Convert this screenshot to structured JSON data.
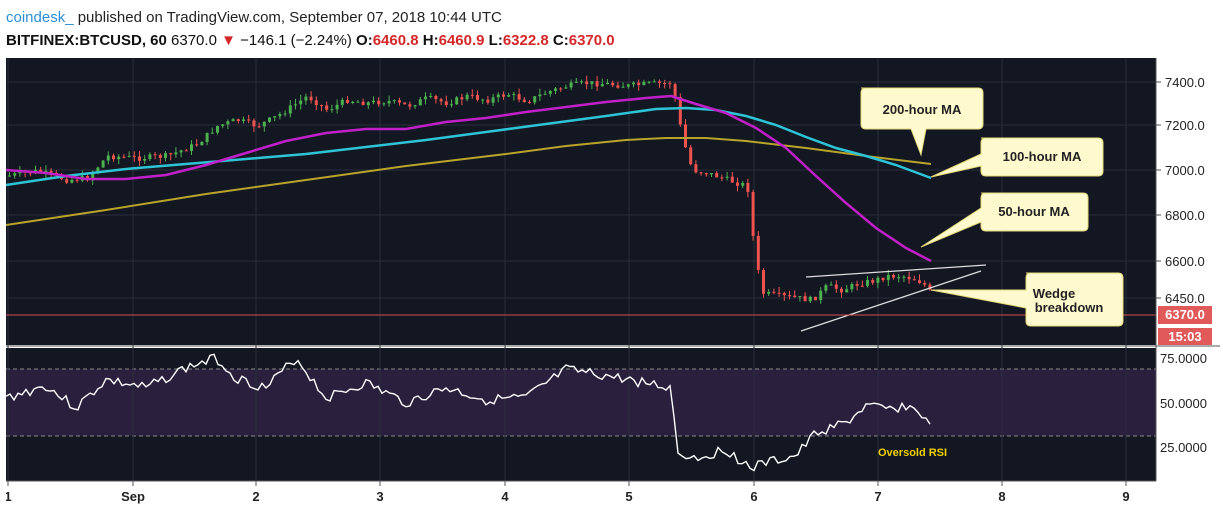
{
  "header": {
    "author": "coindesk_",
    "published": "published on TradingView.com, September 07, 2018 10:44 UTC",
    "symbol": "BITFINEX:BTCUSD, 60",
    "last": "6370.0",
    "change_arrow": "▼",
    "change": "−146.1 (−2.24%)",
    "o_label": "O:",
    "o_value": "6460.8",
    "h_label": "H:",
    "h_value": "6460.9",
    "l_label": "L:",
    "l_value": "6322.8",
    "c_label": "C:",
    "c_value": "6370.0"
  },
  "price_axis": {
    "ticks": [
      "7400.0",
      "7200.0",
      "7000.0",
      "6800.0",
      "6600.0",
      "6450.0"
    ],
    "last_price": "6370.0",
    "countdown": "15:03"
  },
  "rsi_axis": {
    "ticks": [
      "75.0000",
      "50.0000",
      "25.0000"
    ],
    "oversold_label": "Oversold RSI"
  },
  "time_axis": {
    "ticks": [
      "1",
      "Sep",
      "2",
      "3",
      "4",
      "5",
      "6",
      "7",
      "8",
      "9"
    ]
  },
  "annotations": {
    "ma200": "200-hour MA",
    "ma100": "100-hour MA",
    "ma50": "50-hour MA",
    "wedge_line1": "Wedge",
    "wedge_line2": "breakdown"
  },
  "colors": {
    "background": "#131722",
    "up": "#4caf50",
    "down": "#ef5350",
    "ma50": "#c020c8",
    "ma100": "#2ec4d6",
    "ma200": "#b8a42a",
    "rsi": "#ffffff",
    "rsi_band": "#2a1f3d",
    "callout": "#fffacd",
    "accent_red": "#d62728"
  }
}
